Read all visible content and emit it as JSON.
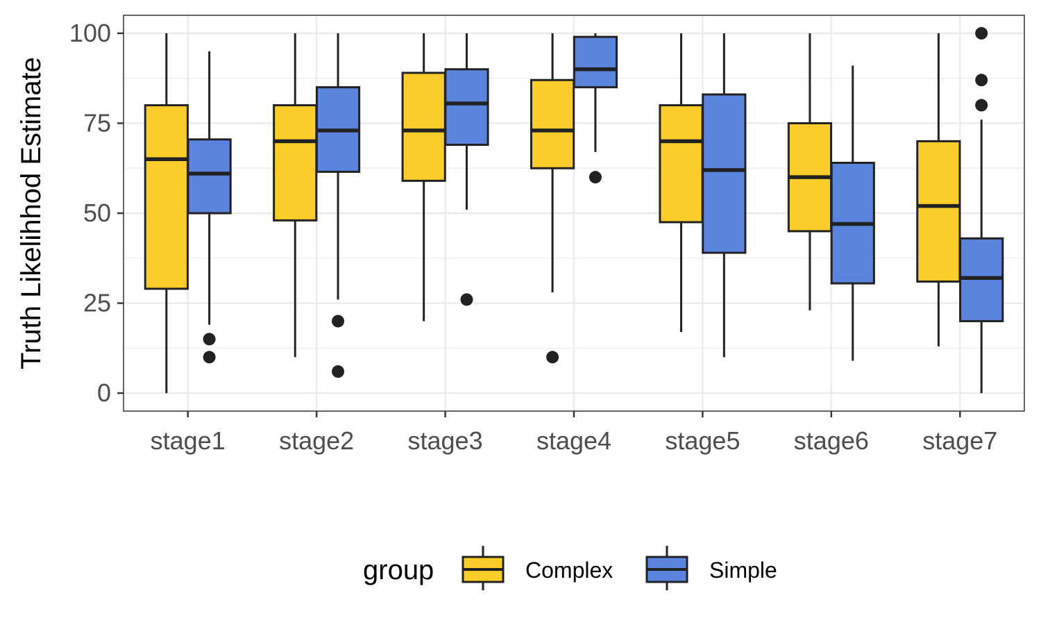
{
  "chart_data": {
    "type": "boxplot",
    "title": "",
    "xlabel": "",
    "ylabel": "Truth Likelihhod Estimate",
    "ylim": [
      -5,
      105
    ],
    "yticks": [
      0,
      25,
      50,
      75,
      100
    ],
    "grid": true,
    "categories": [
      "stage1",
      "stage2",
      "stage3",
      "stage4",
      "stage5",
      "stage6",
      "stage7"
    ],
    "legend": {
      "title": "group",
      "position": "bottom"
    },
    "series": [
      {
        "name": "Complex",
        "color": "#FCCD2A",
        "boxes": [
          {
            "min": 0,
            "q1": 29,
            "median": 65,
            "q3": 80,
            "max": 100,
            "outliers": []
          },
          {
            "min": 10,
            "q1": 48,
            "median": 70,
            "q3": 80,
            "max": 100,
            "outliers": []
          },
          {
            "min": 20,
            "q1": 59,
            "median": 73,
            "q3": 89,
            "max": 100,
            "outliers": []
          },
          {
            "min": 28,
            "q1": 62.5,
            "median": 73,
            "q3": 87,
            "max": 100,
            "outliers": [
              10
            ]
          },
          {
            "min": 17,
            "q1": 47.5,
            "median": 70,
            "q3": 80,
            "max": 100,
            "outliers": []
          },
          {
            "min": 23,
            "q1": 45,
            "median": 60,
            "q3": 75,
            "max": 100,
            "outliers": []
          },
          {
            "min": 13,
            "q1": 31,
            "median": 52,
            "q3": 70,
            "max": 100,
            "outliers": []
          }
        ]
      },
      {
        "name": "Simple",
        "color": "#5B84DE",
        "boxes": [
          {
            "min": 19,
            "q1": 50,
            "median": 61,
            "q3": 70.5,
            "max": 95,
            "outliers": [
              15,
              10
            ]
          },
          {
            "min": 26,
            "q1": 61.5,
            "median": 73,
            "q3": 85,
            "max": 100,
            "outliers": [
              20,
              6
            ]
          },
          {
            "min": 51,
            "q1": 69,
            "median": 80.5,
            "q3": 90,
            "max": 100,
            "outliers": [
              26
            ]
          },
          {
            "min": 67,
            "q1": 85,
            "median": 90,
            "q3": 99,
            "max": 100,
            "outliers": [
              60
            ]
          },
          {
            "min": 10,
            "q1": 39,
            "median": 62,
            "q3": 83,
            "max": 100,
            "outliers": []
          },
          {
            "min": 9,
            "q1": 30.5,
            "median": 47,
            "q3": 64,
            "max": 91,
            "outliers": []
          },
          {
            "min": 0,
            "q1": 20,
            "median": 32,
            "q3": 43,
            "max": 76,
            "outliers": [
              100,
              87,
              80
            ]
          }
        ]
      }
    ]
  }
}
